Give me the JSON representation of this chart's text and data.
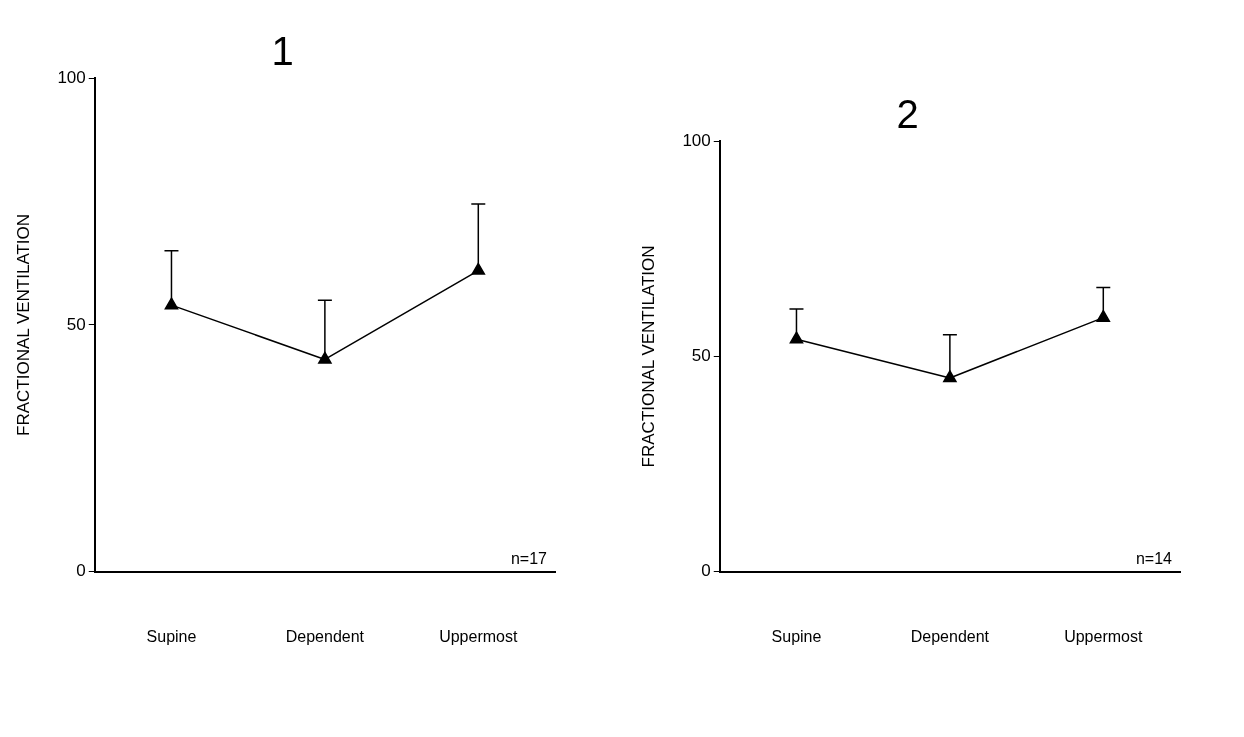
{
  "chart_data": [
    {
      "type": "line",
      "title": "1",
      "ylabel": "FRACTIONAL VENTILATION",
      "categories": [
        "Supine",
        "Dependent",
        "Uppermost"
      ],
      "series": [
        {
          "color": "#000000",
          "values": [
            54,
            43,
            61
          ],
          "errors": [
            [
              54,
              65
            ],
            [
              43,
              55
            ],
            [
              61,
              74.5
            ]
          ]
        }
      ],
      "ylim": [
        0,
        100
      ],
      "yticks": [
        0,
        50,
        100
      ],
      "grid": false,
      "legend": false,
      "marker": "triangle",
      "line_style": "solid",
      "annotations": [
        "n=17"
      ]
    },
    {
      "type": "line",
      "title": "2",
      "ylabel": "FRACTIONAL VENTILATION",
      "categories": [
        "Supine",
        "Dependent",
        "Uppermost"
      ],
      "series": [
        {
          "color": "#000000",
          "values": [
            54,
            45,
            59
          ],
          "errors": [
            [
              54,
              61
            ],
            [
              45,
              55
            ],
            [
              59,
              66
            ]
          ]
        }
      ],
      "ylim": [
        0,
        100
      ],
      "yticks": [
        0,
        50,
        100
      ],
      "grid": false,
      "legend": false,
      "marker": "triangle",
      "line_style": "solid",
      "annotations": [
        "n=14"
      ]
    }
  ]
}
